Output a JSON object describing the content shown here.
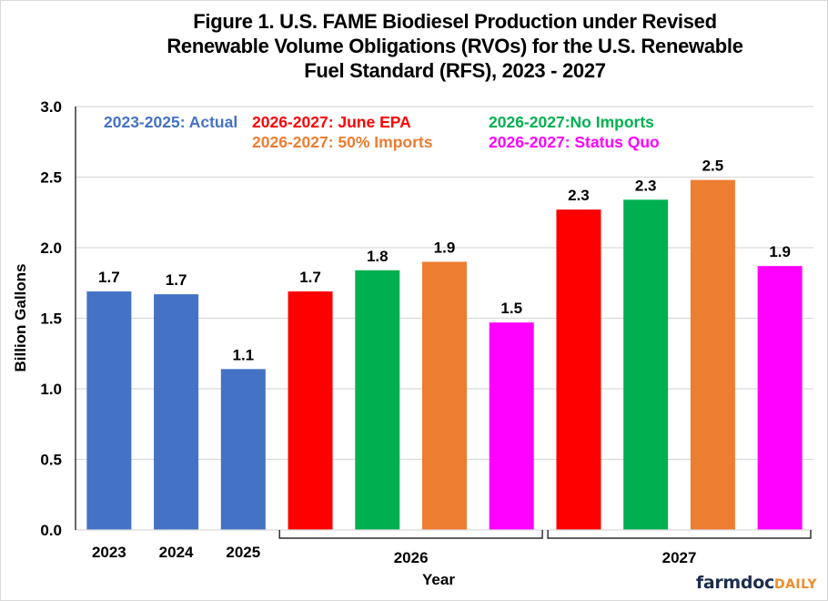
{
  "chart_data": {
    "type": "bar",
    "title": [
      "Figure 1. U.S. FAME Biodiesel Production under Revised",
      "Renewable Volume Obligations (RVOs) for the U.S. Renewable",
      "Fuel Standard (RFS), 2023 - 2027"
    ],
    "xlabel": "Year",
    "ylabel": "Billion Gallons",
    "ylim": [
      0,
      3.0
    ],
    "yticks": [
      0.0,
      0.5,
      1.0,
      1.5,
      2.0,
      2.5,
      3.0
    ],
    "ytick_labels": [
      "0.0",
      "0.5",
      "1.0",
      "1.5",
      "2.0",
      "2.5",
      "3.0"
    ],
    "grid": true,
    "groups": [
      {
        "label": "2023",
        "bracket": false
      },
      {
        "label": "2024",
        "bracket": false
      },
      {
        "label": "2025",
        "bracket": false
      },
      {
        "label": "2026",
        "bracket": true
      },
      {
        "label": "2027",
        "bracket": true
      }
    ],
    "bars": [
      {
        "group": "2023",
        "series": "2023-2025: Actual",
        "value": 1.69,
        "label": "1.7"
      },
      {
        "group": "2024",
        "series": "2023-2025: Actual",
        "value": 1.67,
        "label": "1.7"
      },
      {
        "group": "2025",
        "series": "2023-2025: Actual",
        "value": 1.14,
        "label": "1.1"
      },
      {
        "group": "2026",
        "series": "2026-2027: June EPA",
        "value": 1.69,
        "label": "1.7"
      },
      {
        "group": "2026",
        "series": "2026-2027:No Imports",
        "value": 1.84,
        "label": "1.8"
      },
      {
        "group": "2026",
        "series": "2026-2027: 50% Imports",
        "value": 1.9,
        "label": "1.9"
      },
      {
        "group": "2026",
        "series": "2026-2027: Status Quo",
        "value": 1.47,
        "label": "1.5"
      },
      {
        "group": "2027",
        "series": "2026-2027: June EPA",
        "value": 2.27,
        "label": "2.3"
      },
      {
        "group": "2027",
        "series": "2026-2027:No Imports",
        "value": 2.34,
        "label": "2.3"
      },
      {
        "group": "2027",
        "series": "2026-2027: 50% Imports",
        "value": 2.48,
        "label": "2.5"
      },
      {
        "group": "2027",
        "series": "2026-2027: Status Quo",
        "value": 1.87,
        "label": "1.9"
      }
    ],
    "legend": {
      "placement": "top",
      "entries": [
        {
          "name": "2023-2025: Actual",
          "color": "#4472c4"
        },
        {
          "name": "2026-2027: June EPA",
          "color": "#ff0000"
        },
        {
          "name": "2026-2027:No Imports",
          "color": "#00b050"
        },
        {
          "name": "2026-2027: 50% Imports",
          "color": "#ed7d31"
        },
        {
          "name": "2026-2027: Status Quo",
          "color": "#ff00ff"
        }
      ]
    }
  },
  "branding": {
    "logo_main": "farmdoc",
    "logo_sub": "DAILY"
  }
}
